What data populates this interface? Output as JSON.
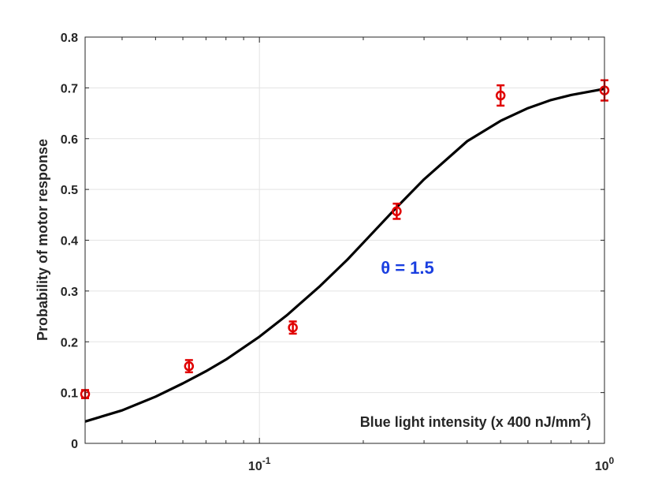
{
  "chart_data": {
    "type": "scatter",
    "x_scale": "log",
    "xlim": [
      0.03125,
      1
    ],
    "ylim": [
      0,
      0.8
    ],
    "grid": true,
    "xlabel": "Blue light intensity (x 400 nJ/mm",
    "xlabel_superscript": "2",
    "xlabel_close": ")",
    "ylabel": "Probability of motor response",
    "annotation": "θ = 1.5",
    "y_ticks": [
      "0",
      "0.1",
      "0.2",
      "0.3",
      "0.4",
      "0.5",
      "0.6",
      "0.7",
      "0.8"
    ],
    "x_ticks": [
      {
        "base": "10",
        "exp": "-1",
        "value": 0.1
      },
      {
        "base": "10",
        "exp": "0",
        "value": 1
      }
    ],
    "series": [
      {
        "type": "scatter",
        "color": "#e00000",
        "marker": "circle",
        "x": [
          0.03125,
          0.0625,
          0.125,
          0.25,
          0.5,
          1
        ],
        "y": [
          0.097,
          0.152,
          0.228,
          0.457,
          0.685,
          0.695
        ],
        "error": [
          0.008,
          0.012,
          0.012,
          0.015,
          0.02,
          0.02
        ]
      },
      {
        "type": "line",
        "color": "#000000",
        "x": [
          0.03125,
          0.04,
          0.05,
          0.06,
          0.07,
          0.08,
          0.1,
          0.12,
          0.15,
          0.18,
          0.2,
          0.25,
          0.3,
          0.4,
          0.5,
          0.6,
          0.7,
          0.8,
          1
        ],
        "y": [
          0.043,
          0.065,
          0.092,
          0.118,
          0.142,
          0.165,
          0.21,
          0.252,
          0.31,
          0.362,
          0.395,
          0.465,
          0.52,
          0.595,
          0.635,
          0.66,
          0.676,
          0.686,
          0.698
        ]
      }
    ]
  }
}
